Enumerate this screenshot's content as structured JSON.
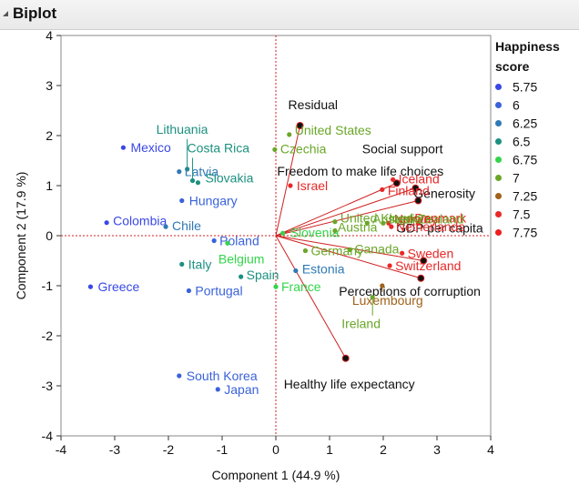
{
  "window": {
    "title": "Biplot"
  },
  "legend": {
    "title_line1": "Happiness",
    "title_line2": "score",
    "entries": [
      {
        "label": "5.75",
        "color": "#3a48e6"
      },
      {
        "label": "6",
        "color": "#3a62da"
      },
      {
        "label": "6.25",
        "color": "#2f79b4"
      },
      {
        "label": "6.5",
        "color": "#1c9080"
      },
      {
        "label": "6.75",
        "color": "#33d44a"
      },
      {
        "label": "7",
        "color": "#6aa628"
      },
      {
        "label": "7.25",
        "color": "#a0621a"
      },
      {
        "label": "7.5",
        "color": "#e82828"
      },
      {
        "label": "7.75",
        "color": "#ee1f1f"
      }
    ]
  },
  "chart_data": {
    "type": "scatter",
    "subtype": "biplot",
    "xlabel": "Component 1  (44.9 %)",
    "ylabel": "Component 2  (17.9 %)",
    "xlim": [
      -4,
      4
    ],
    "ylim": [
      -4,
      4
    ],
    "xticks": [
      "-4",
      "-3",
      "-2",
      "-1",
      "0",
      "1",
      "2",
      "3",
      "4"
    ],
    "yticks": [
      "4",
      "3",
      "2",
      "1",
      "0",
      "-1",
      "-2",
      "-3",
      "-4"
    ],
    "points": [
      {
        "label": "Mexico",
        "x": -2.84,
        "y": 1.76,
        "color": "#3a48e6"
      },
      {
        "label": "Lithuania",
        "x": -1.65,
        "y": 1.33,
        "color": "#1c9080"
      },
      {
        "label": "Latvia",
        "x": -1.8,
        "y": 1.28,
        "color": "#2f79b4"
      },
      {
        "label": "Costa Rica",
        "x": -1.55,
        "y": 1.1,
        "color": "#1c9080"
      },
      {
        "label": "Slovakia",
        "x": -1.45,
        "y": 1.06,
        "color": "#1c9080"
      },
      {
        "label": "Hungary",
        "x": -1.75,
        "y": 0.7,
        "color": "#3a62da"
      },
      {
        "label": "Colombia",
        "x": -3.15,
        "y": 0.26,
        "color": "#3a48e6"
      },
      {
        "label": "Chile",
        "x": -2.05,
        "y": 0.18,
        "color": "#2f79b4"
      },
      {
        "label": "Poland",
        "x": -1.15,
        "y": -0.1,
        "color": "#3a62da"
      },
      {
        "label": "Belgium",
        "x": -0.9,
        "y": -0.15,
        "color": "#33d44a"
      },
      {
        "label": "Italy",
        "x": -1.75,
        "y": -0.57,
        "color": "#1c9080"
      },
      {
        "label": "Spain",
        "x": -0.65,
        "y": -0.82,
        "color": "#1c9080"
      },
      {
        "label": "Greece",
        "x": -3.45,
        "y": -1.02,
        "color": "#3a48e6"
      },
      {
        "label": "Portugal",
        "x": -1.62,
        "y": -1.1,
        "color": "#3a62da"
      },
      {
        "label": "South Korea",
        "x": -1.8,
        "y": -2.8,
        "color": "#3a62da"
      },
      {
        "label": "Japan",
        "x": -1.08,
        "y": -3.07,
        "color": "#3a62da"
      },
      {
        "label": "United States",
        "x": 0.25,
        "y": 2.02,
        "color": "#6aa628"
      },
      {
        "label": "Czechia",
        "x": -0.02,
        "y": 1.72,
        "color": "#6aa628"
      },
      {
        "label": "Israel",
        "x": 0.27,
        "y": 1.0,
        "color": "#e82828"
      },
      {
        "label": "Slovenia",
        "x": 0.13,
        "y": 0.05,
        "color": "#33d44a"
      },
      {
        "label": "United Kingdom",
        "x": 1.1,
        "y": 0.28,
        "color": "#6aa628"
      },
      {
        "label": "Austria",
        "x": 1.1,
        "y": 0.1,
        "color": "#6aa628"
      },
      {
        "label": "Germany",
        "x": 0.55,
        "y": -0.3,
        "color": "#6aa628"
      },
      {
        "label": "Canada",
        "x": 1.38,
        "y": -0.28,
        "color": "#6aa628"
      },
      {
        "label": "Estonia",
        "x": 0.37,
        "y": -0.7,
        "color": "#2f79b4"
      },
      {
        "label": "France",
        "x": 0.0,
        "y": -1.02,
        "color": "#33d44a"
      },
      {
        "label": "Iceland",
        "x": 2.18,
        "y": 1.12,
        "color": "#e82828"
      },
      {
        "label": "Finland",
        "x": 1.98,
        "y": 0.92,
        "color": "#e82828"
      },
      {
        "label": "Norway",
        "x": 2.1,
        "y": 0.25,
        "color": "#e82828"
      },
      {
        "label": "Denmark",
        "x": 2.65,
        "y": 0.25,
        "color": "#e82828"
      },
      {
        "label": "Netherlands",
        "x": 2.15,
        "y": 0.18,
        "color": "#e82828"
      },
      {
        "label": "Australia",
        "x": 1.7,
        "y": 0.25,
        "color": "#6aa628"
      },
      {
        "label": "New Zealand",
        "x": 2.0,
        "y": 0.25,
        "color": "#6aa628"
      },
      {
        "label": "Sweden",
        "x": 2.35,
        "y": -0.35,
        "color": "#e82828"
      },
      {
        "label": "Switzerland",
        "x": 2.12,
        "y": -0.6,
        "color": "#e82828"
      },
      {
        "label": "Luxembourg",
        "x": 1.98,
        "y": -1.0,
        "color": "#a0621a"
      },
      {
        "label": "Ireland",
        "x": 1.8,
        "y": -1.23,
        "color": "#6aa628"
      }
    ],
    "vectors": [
      {
        "label": "Residual",
        "x": 0.45,
        "y": 2.2
      },
      {
        "label": "Social support",
        "x": 2.25,
        "y": 1.05
      },
      {
        "label": "Freedom to make life choices",
        "x": 2.6,
        "y": 0.95
      },
      {
        "label": "Generosity",
        "x": 2.65,
        "y": 0.7
      },
      {
        "label": "GDP per capita",
        "x": 2.75,
        "y": -0.5
      },
      {
        "label": "Perceptions of corruption",
        "x": 2.7,
        "y": -0.85
      },
      {
        "label": "Healthy life expectancy",
        "x": 1.3,
        "y": -2.45
      }
    ]
  }
}
